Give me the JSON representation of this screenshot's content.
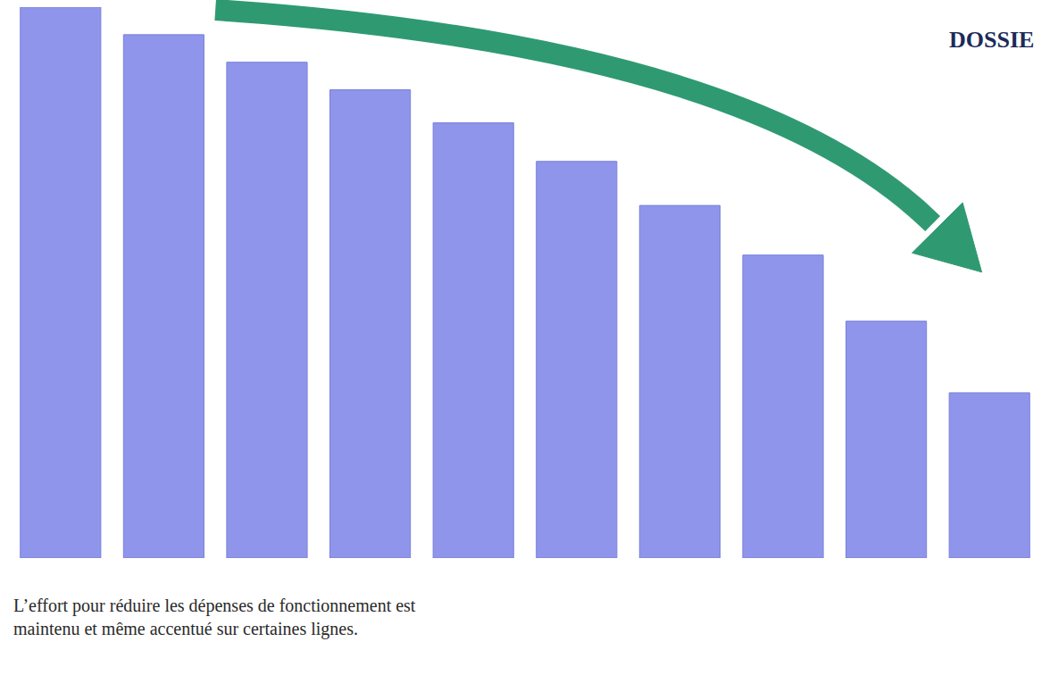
{
  "chart_data": {
    "type": "bar",
    "title": "DOSSIE",
    "annotations": [
      "L’effort pour réduire les dépenses de fonctionnement est maintenu et même accentué sur certaines lignes."
    ],
    "categories": [
      null,
      null,
      null,
      null,
      null,
      null,
      null,
      null,
      null,
      null
    ],
    "values": [
      100,
      95,
      90,
      85,
      79,
      72,
      64,
      55,
      43,
      30
    ],
    "color": "#8f95ea",
    "ylim": [
      0,
      100
    ],
    "grid": false,
    "tick_labels": false
  }
}
